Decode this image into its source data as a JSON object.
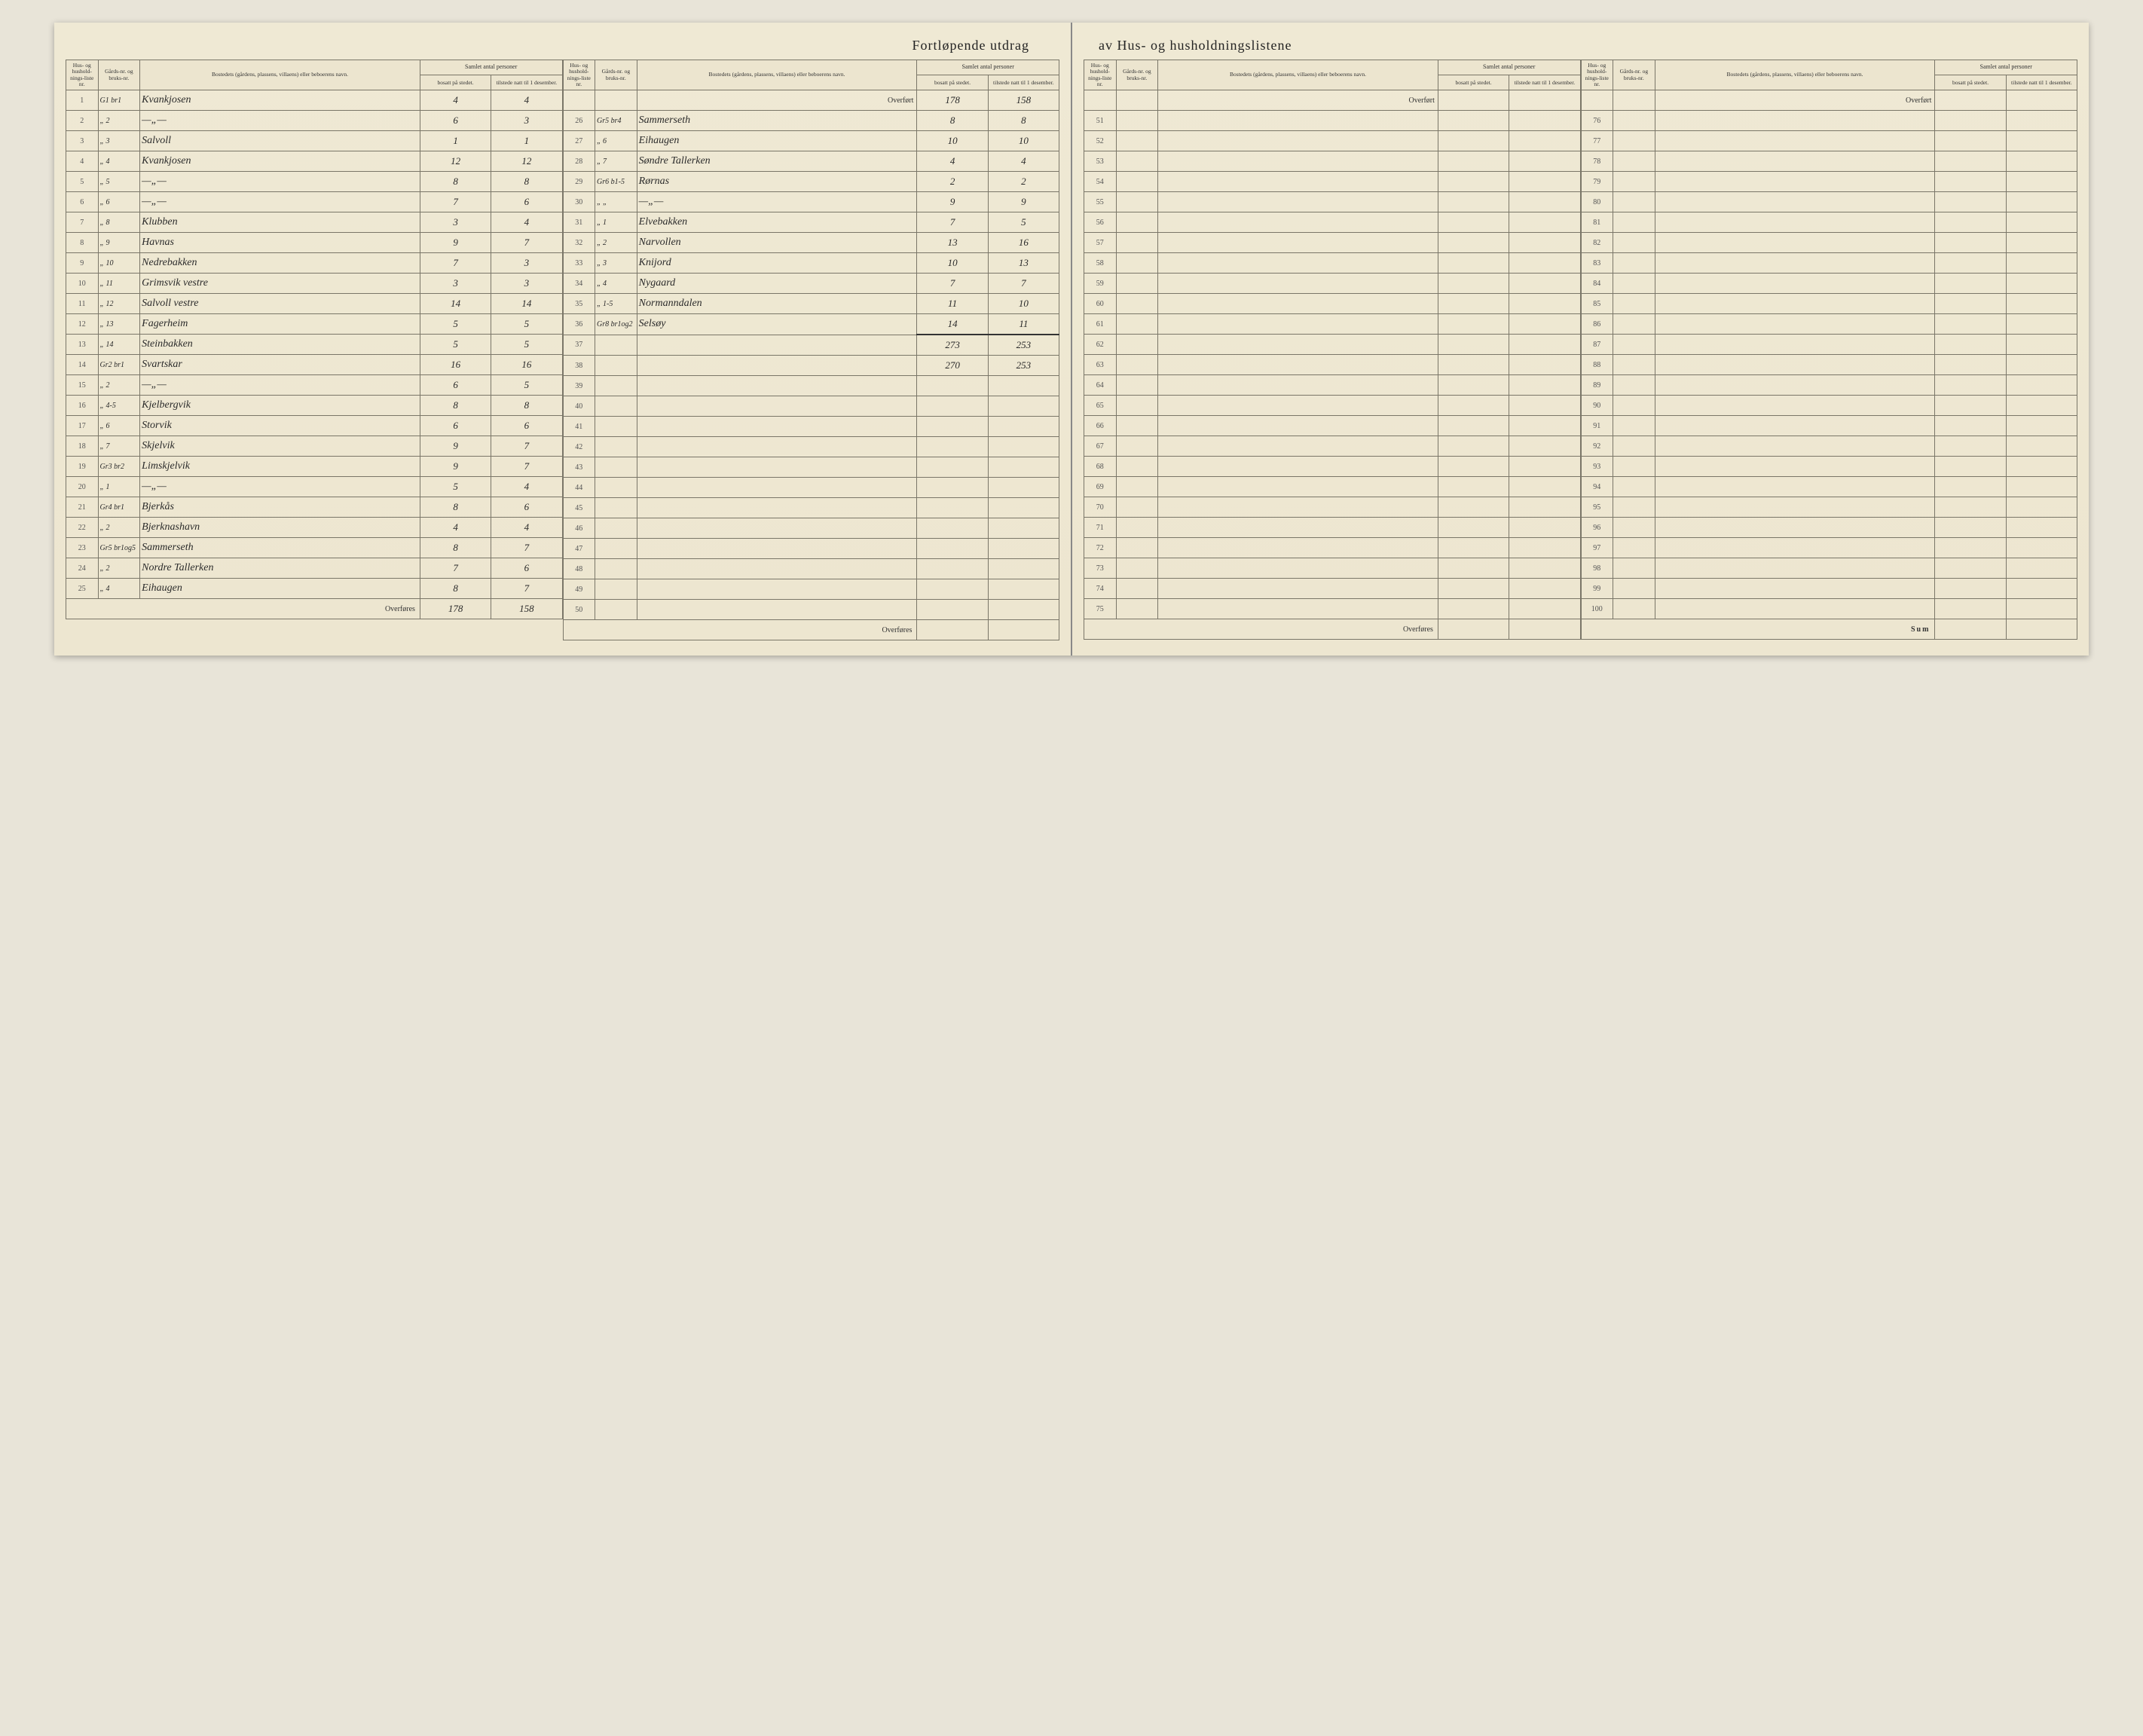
{
  "doc": {
    "title_left": "Fortløpende utdrag",
    "title_right": "av Hus- og husholdningslistene"
  },
  "headers": {
    "hus_nr": "Hus- og hushold-nings-liste nr.",
    "gards_nr": "Gårds-nr. og bruks-nr.",
    "bosted": "Bostedets (gårdens, plassens, villaens) eller beboerens navn.",
    "samlet": "Samlet antal personer",
    "bosatt": "bosatt på stedet.",
    "tilstede": "tilstede natt til 1 desember.",
    "overfort": "Overført",
    "overfores": "Overføres",
    "sum": "Sum"
  },
  "colors": {
    "paper": "#f0ead8",
    "ink": "#2a2a2a",
    "rule": "#7a7668"
  },
  "block1": {
    "rows": [
      {
        "nr": "1",
        "gard": "G1 br1",
        "name": "Kvankjosen",
        "bosatt": "4",
        "tilstede": "4"
      },
      {
        "nr": "2",
        "gard": "„ 2",
        "name": "—„—",
        "bosatt": "6",
        "tilstede": "3"
      },
      {
        "nr": "3",
        "gard": "„ 3",
        "name": "Salvoll",
        "bosatt": "1",
        "tilstede": "1"
      },
      {
        "nr": "4",
        "gard": "„ 4",
        "name": "Kvankjosen",
        "bosatt": "12",
        "tilstede": "12"
      },
      {
        "nr": "5",
        "gard": "„ 5",
        "name": "—„—",
        "bosatt": "8",
        "tilstede": "8"
      },
      {
        "nr": "6",
        "gard": "„ 6",
        "name": "—„—",
        "bosatt": "7",
        "tilstede": "6"
      },
      {
        "nr": "7",
        "gard": "„ 8",
        "name": "Klubben",
        "bosatt": "3",
        "tilstede": "4"
      },
      {
        "nr": "8",
        "gard": "„ 9",
        "name": "Havnas",
        "bosatt": "9",
        "tilstede": "7"
      },
      {
        "nr": "9",
        "gard": "„ 10",
        "name": "Nedrebakken",
        "bosatt": "7",
        "tilstede": "3"
      },
      {
        "nr": "10",
        "gard": "„ 11",
        "name": "Grimsvik vestre",
        "bosatt": "3",
        "tilstede": "3"
      },
      {
        "nr": "11",
        "gard": "„ 12",
        "name": "Salvoll vestre",
        "bosatt": "14",
        "tilstede": "14"
      },
      {
        "nr": "12",
        "gard": "„ 13",
        "name": "Fagerheim",
        "bosatt": "5",
        "tilstede": "5"
      },
      {
        "nr": "13",
        "gard": "„ 14",
        "name": "Steinbakken",
        "bosatt": "5",
        "tilstede": "5"
      },
      {
        "nr": "14",
        "gard": "Gr2 br1",
        "name": "Svartskar",
        "bosatt": "16",
        "tilstede": "16"
      },
      {
        "nr": "15",
        "gard": "„ 2",
        "name": "—„—",
        "bosatt": "6",
        "tilstede": "5"
      },
      {
        "nr": "16",
        "gard": "„ 4-5",
        "name": "Kjelbergvik",
        "bosatt": "8",
        "tilstede": "8"
      },
      {
        "nr": "17",
        "gard": "„ 6",
        "name": "Storvik",
        "bosatt": "6",
        "tilstede": "6"
      },
      {
        "nr": "18",
        "gard": "„ 7",
        "name": "Skjelvik",
        "bosatt": "9",
        "tilstede": "7"
      },
      {
        "nr": "19",
        "gard": "Gr3 br2",
        "name": "Limskjelvik",
        "bosatt": "9",
        "tilstede": "7"
      },
      {
        "nr": "20",
        "gard": "„ 1",
        "name": "—„—",
        "bosatt": "5",
        "tilstede": "4"
      },
      {
        "nr": "21",
        "gard": "Gr4 br1",
        "name": "Bjerkås",
        "bosatt": "8",
        "tilstede": "6"
      },
      {
        "nr": "22",
        "gard": "„ 2",
        "name": "Bjerknashavn",
        "bosatt": "4",
        "tilstede": "4"
      },
      {
        "nr": "23",
        "gard": "Gr5 br1og5",
        "name": "Sammerseth",
        "bosatt": "8",
        "tilstede": "7"
      },
      {
        "nr": "24",
        "gard": "„ 2",
        "name": "Nordre Tallerken",
        "bosatt": "7",
        "tilstede": "6"
      },
      {
        "nr": "25",
        "gard": "„ 4",
        "name": "Eihaugen",
        "bosatt": "8",
        "tilstede": "7"
      }
    ],
    "footer_bosatt": "178",
    "footer_tilstede": "158"
  },
  "block2": {
    "overfort_bosatt": "178",
    "overfort_tilstede": "158",
    "rows": [
      {
        "nr": "26",
        "gard": "Gr5 br4",
        "name": "Sammerseth",
        "bosatt": "8",
        "tilstede": "8"
      },
      {
        "nr": "27",
        "gard": "„ 6",
        "name": "Eihaugen",
        "bosatt": "10",
        "tilstede": "10"
      },
      {
        "nr": "28",
        "gard": "„ 7",
        "name": "Søndre Tallerken",
        "bosatt": "4",
        "tilstede": "4"
      },
      {
        "nr": "29",
        "gard": "Gr6 b1-5",
        "name": "Rørnas",
        "bosatt": "2",
        "tilstede": "2"
      },
      {
        "nr": "30",
        "gard": "„ „",
        "name": "—„—",
        "bosatt": "9",
        "tilstede": "9"
      },
      {
        "nr": "31",
        "gard": "„ 1",
        "name": "Elvebakken",
        "bosatt": "7",
        "tilstede": "5"
      },
      {
        "nr": "32",
        "gard": "„ 2",
        "name": "Narvollen",
        "bosatt": "13",
        "tilstede": "16"
      },
      {
        "nr": "33",
        "gard": "„ 3",
        "name": "Knijord",
        "bosatt": "10",
        "tilstede": "13"
      },
      {
        "nr": "34",
        "gard": "„ 4",
        "name": "Nygaard",
        "bosatt": "7",
        "tilstede": "7"
      },
      {
        "nr": "35",
        "gard": "„ 1-5",
        "name": "Normanndalen",
        "bosatt": "11",
        "tilstede": "10"
      },
      {
        "nr": "36",
        "gard": "Gr8 br1og2",
        "name": "Selsøy",
        "bosatt": "14",
        "tilstede": "11"
      },
      {
        "nr": "37",
        "gard": "",
        "name": "",
        "bosatt": "273",
        "tilstede": "253"
      },
      {
        "nr": "38",
        "gard": "",
        "name": "",
        "bosatt": "270",
        "tilstede": "253"
      },
      {
        "nr": "39",
        "gard": "",
        "name": "",
        "bosatt": "",
        "tilstede": ""
      },
      {
        "nr": "40",
        "gard": "",
        "name": "",
        "bosatt": "",
        "tilstede": ""
      },
      {
        "nr": "41",
        "gard": "",
        "name": "",
        "bosatt": "",
        "tilstede": ""
      },
      {
        "nr": "42",
        "gard": "",
        "name": "",
        "bosatt": "",
        "tilstede": ""
      },
      {
        "nr": "43",
        "gard": "",
        "name": "",
        "bosatt": "",
        "tilstede": ""
      },
      {
        "nr": "44",
        "gard": "",
        "name": "",
        "bosatt": "",
        "tilstede": ""
      },
      {
        "nr": "45",
        "gard": "",
        "name": "",
        "bosatt": "",
        "tilstede": ""
      },
      {
        "nr": "46",
        "gard": "",
        "name": "",
        "bosatt": "",
        "tilstede": ""
      },
      {
        "nr": "47",
        "gard": "",
        "name": "",
        "bosatt": "",
        "tilstede": ""
      },
      {
        "nr": "48",
        "gard": "",
        "name": "",
        "bosatt": "",
        "tilstede": ""
      },
      {
        "nr": "49",
        "gard": "",
        "name": "",
        "bosatt": "",
        "tilstede": ""
      },
      {
        "nr": "50",
        "gard": "",
        "name": "",
        "bosatt": "",
        "tilstede": ""
      }
    ]
  },
  "block3": {
    "start": 51,
    "end": 75
  },
  "block4": {
    "start": 76,
    "end": 100
  }
}
